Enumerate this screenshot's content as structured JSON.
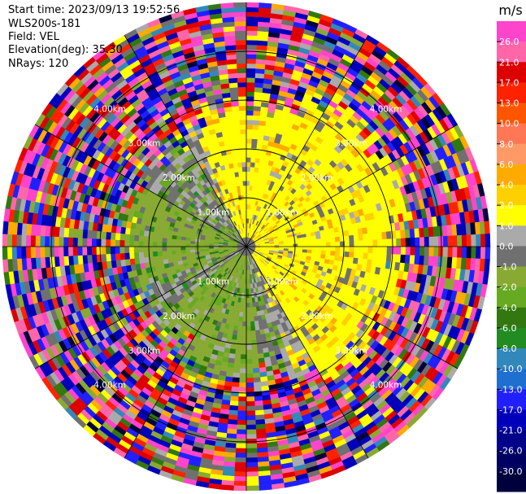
{
  "header": {
    "start_time": "Start time: 2023/09/13 19:52:56",
    "instrument": "WLS200s-181",
    "field": "Field: VEL",
    "elevation": "Elevation(deg): 35.30",
    "nrays": "NRays: 120"
  },
  "chart_data": {
    "type": "heatmap",
    "projection": "polar-ppi",
    "field": "VEL",
    "unit": "m/s",
    "range_ring_labels": [
      "1.00km",
      "2.00km",
      "3.00km",
      "4.00km"
    ],
    "range_ring_km": [
      1,
      2,
      3,
      4
    ],
    "max_range_km": 5,
    "colorbar": {
      "label": "m/s",
      "ticks": [
        "26.0",
        "21.0",
        "17.0",
        "13.0",
        "10.0",
        "8.0",
        "6.0",
        "4.0",
        "2.0",
        "1.0",
        "0.0",
        "-1.0",
        "-2.0",
        "-4.0",
        "-6.0",
        "-8.0",
        "-10.0",
        "-13.0",
        "-17.0",
        "-21.0",
        "-26.0",
        "-30.0"
      ],
      "colors": [
        "#ff44cc",
        "#ff66aa",
        "#dd0000",
        "#ff2200",
        "#ff5500",
        "#ff7755",
        "#ff9966",
        "#ffaa00",
        "#ffd000",
        "#ffff00",
        "#aaaaaa",
        "#707070",
        "#88aa33",
        "#66aa22",
        "#337711",
        "#228b22",
        "#3388bb",
        "#1f6fd0",
        "#2020ff",
        "#0000bb",
        "#000088",
        "#000060",
        "#00003c"
      ]
    }
  }
}
